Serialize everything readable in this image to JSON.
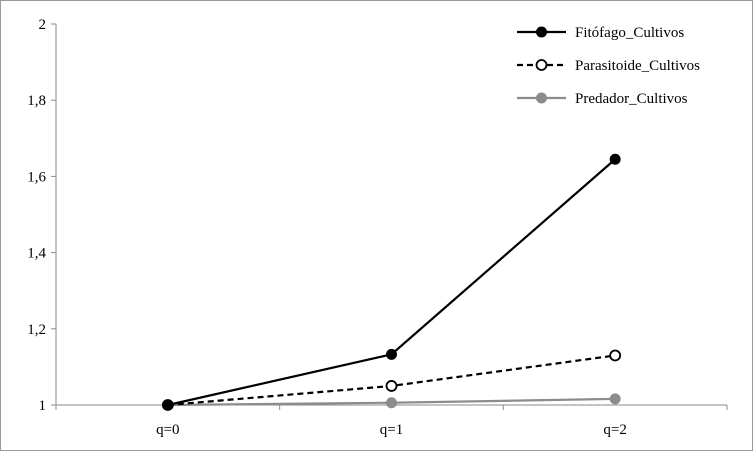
{
  "chart_data": {
    "type": "line",
    "categories": [
      "q=0",
      "q=1",
      "q=2"
    ],
    "ytick_labels": [
      "1",
      "1,2",
      "1,4",
      "1,6",
      "1,8",
      "2"
    ],
    "ylim": [
      1,
      2
    ],
    "grid": false,
    "legend_position": "top-right",
    "series": [
      {
        "name": "Fitófago_Cultivos",
        "values": [
          1.0,
          1.133,
          1.645
        ],
        "color": "#000000",
        "dash": "solid",
        "marker": "filled-circle"
      },
      {
        "name": "Parasitoide_Cultivos",
        "values": [
          1.0,
          1.05,
          1.13
        ],
        "color": "#000000",
        "dash": "dashed",
        "marker": "open-circle"
      },
      {
        "name": "Predador_Cultivos",
        "values": [
          1.0,
          1.006,
          1.016
        ],
        "color": "#8c8c8c",
        "dash": "solid",
        "marker": "filled-circle"
      }
    ]
  }
}
